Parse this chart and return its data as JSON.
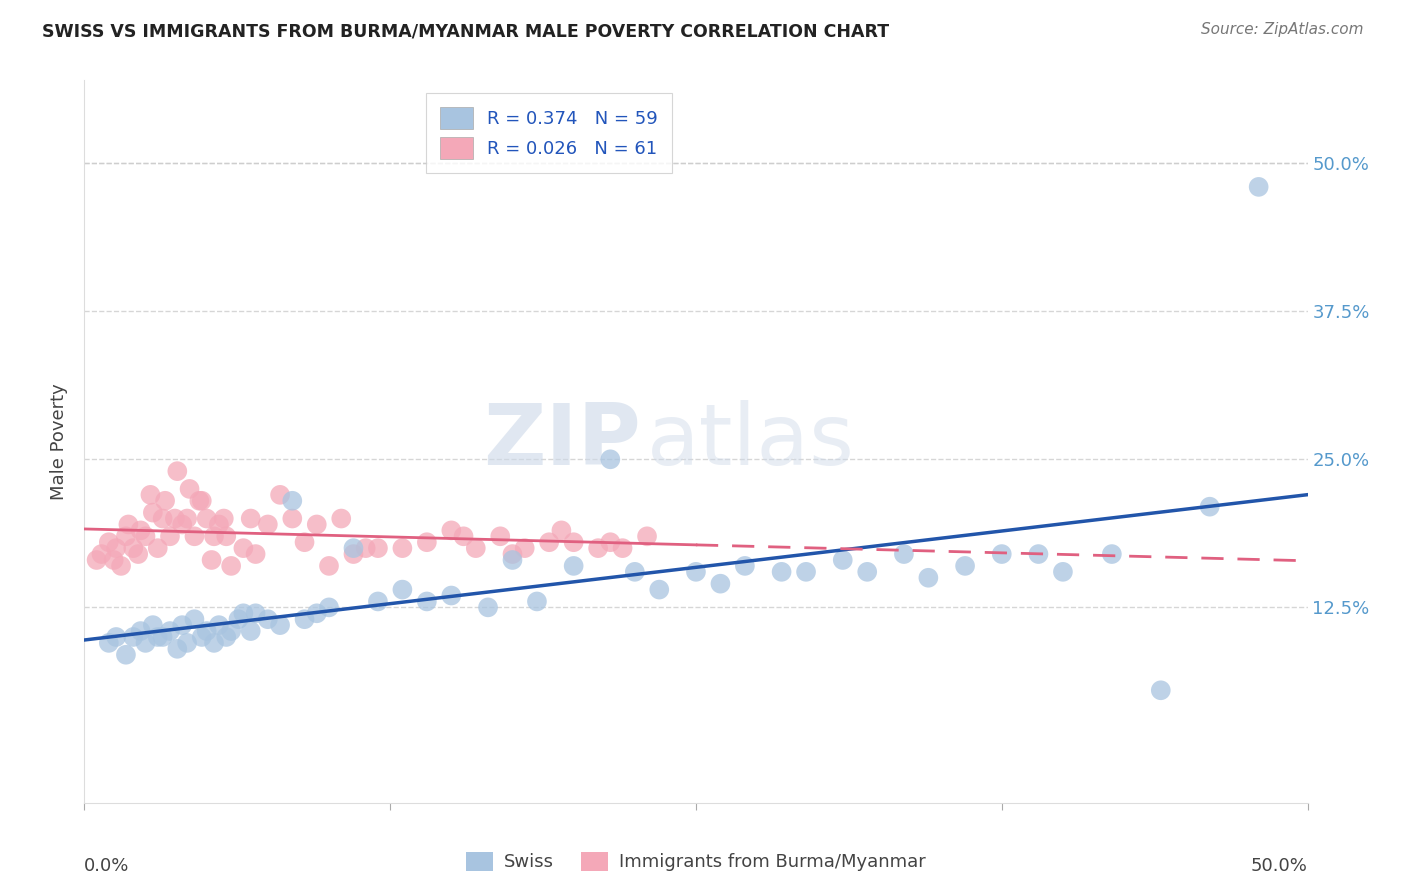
{
  "title": "SWISS VS IMMIGRANTS FROM BURMA/MYANMAR MALE POVERTY CORRELATION CHART",
  "source": "Source: ZipAtlas.com",
  "ylabel": "Male Poverty",
  "ytick_labels": [
    "12.5%",
    "25.0%",
    "37.5%",
    "50.0%"
  ],
  "ytick_values": [
    0.125,
    0.25,
    0.375,
    0.5
  ],
  "xlim": [
    0.0,
    0.5
  ],
  "ylim": [
    -0.04,
    0.57
  ],
  "legend_r_swiss": "0.374",
  "legend_n_swiss": "59",
  "legend_r_immig": "0.026",
  "legend_n_immig": "61",
  "legend_label_swiss": "Swiss",
  "legend_label_immig": "Immigrants from Burma/Myanmar",
  "swiss_color": "#a8c4e0",
  "immig_color": "#f4a8b8",
  "swiss_line_color": "#2255aa",
  "immig_line_color": "#e06080",
  "watermark_zip": "ZIP",
  "watermark_atlas": "atlas",
  "background_color": "#ffffff",
  "grid_color": "#cccccc",
  "swiss_x": [
    0.01,
    0.013,
    0.017,
    0.02,
    0.023,
    0.025,
    0.028,
    0.03,
    0.032,
    0.035,
    0.038,
    0.04,
    0.042,
    0.045,
    0.048,
    0.05,
    0.053,
    0.055,
    0.058,
    0.06,
    0.063,
    0.065,
    0.068,
    0.07,
    0.075,
    0.08,
    0.085,
    0.09,
    0.095,
    0.1,
    0.11,
    0.12,
    0.13,
    0.14,
    0.15,
    0.165,
    0.175,
    0.185,
    0.2,
    0.215,
    0.225,
    0.235,
    0.25,
    0.26,
    0.27,
    0.285,
    0.295,
    0.31,
    0.32,
    0.335,
    0.345,
    0.36,
    0.375,
    0.39,
    0.4,
    0.42,
    0.44,
    0.46,
    0.48
  ],
  "swiss_y": [
    0.095,
    0.1,
    0.085,
    0.1,
    0.105,
    0.095,
    0.11,
    0.1,
    0.1,
    0.105,
    0.09,
    0.11,
    0.095,
    0.115,
    0.1,
    0.105,
    0.095,
    0.11,
    0.1,
    0.105,
    0.115,
    0.12,
    0.105,
    0.12,
    0.115,
    0.11,
    0.215,
    0.115,
    0.12,
    0.125,
    0.175,
    0.13,
    0.14,
    0.13,
    0.135,
    0.125,
    0.165,
    0.13,
    0.16,
    0.25,
    0.155,
    0.14,
    0.155,
    0.145,
    0.16,
    0.155,
    0.155,
    0.165,
    0.155,
    0.17,
    0.15,
    0.16,
    0.17,
    0.17,
    0.155,
    0.17,
    0.055,
    0.21,
    0.48
  ],
  "immig_x": [
    0.005,
    0.007,
    0.01,
    0.012,
    0.013,
    0.015,
    0.017,
    0.018,
    0.02,
    0.022,
    0.023,
    0.025,
    0.027,
    0.028,
    0.03,
    0.032,
    0.033,
    0.035,
    0.037,
    0.038,
    0.04,
    0.042,
    0.043,
    0.045,
    0.047,
    0.048,
    0.05,
    0.052,
    0.053,
    0.055,
    0.057,
    0.058,
    0.06,
    0.065,
    0.068,
    0.07,
    0.075,
    0.08,
    0.085,
    0.09,
    0.095,
    0.1,
    0.105,
    0.11,
    0.115,
    0.12,
    0.13,
    0.14,
    0.15,
    0.155,
    0.16,
    0.17,
    0.175,
    0.18,
    0.19,
    0.195,
    0.2,
    0.21,
    0.215,
    0.22,
    0.23
  ],
  "immig_y": [
    0.165,
    0.17,
    0.18,
    0.165,
    0.175,
    0.16,
    0.185,
    0.195,
    0.175,
    0.17,
    0.19,
    0.185,
    0.22,
    0.205,
    0.175,
    0.2,
    0.215,
    0.185,
    0.2,
    0.24,
    0.195,
    0.2,
    0.225,
    0.185,
    0.215,
    0.215,
    0.2,
    0.165,
    0.185,
    0.195,
    0.2,
    0.185,
    0.16,
    0.175,
    0.2,
    0.17,
    0.195,
    0.22,
    0.2,
    0.18,
    0.195,
    0.16,
    0.2,
    0.17,
    0.175,
    0.175,
    0.175,
    0.18,
    0.19,
    0.185,
    0.175,
    0.185,
    0.17,
    0.175,
    0.18,
    0.19,
    0.18,
    0.175,
    0.18,
    0.175,
    0.185
  ]
}
